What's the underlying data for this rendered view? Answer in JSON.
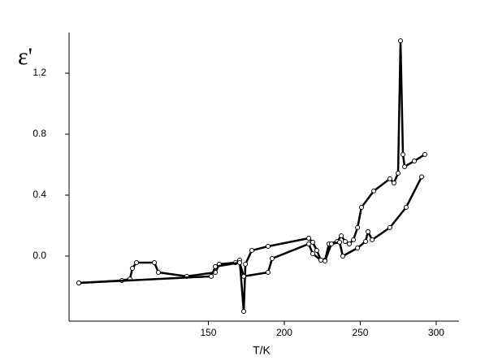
{
  "chart_data": {
    "type": "line",
    "x_label": "T/K",
    "y_label": "ε'",
    "xlim": [
      58.3,
      315
    ],
    "xticks": [
      150,
      200,
      250,
      300
    ],
    "ylim": [
      -0.427,
      1.467
    ],
    "yticks": [
      {
        "value": 0,
        "label": "0.0"
      },
      0.4,
      0.8,
      1.2
    ],
    "grid": false,
    "marker": "open-circle",
    "series": [
      {
        "color": "#000000",
        "x": [
          64.7,
          93.1,
          98.4,
          100.0,
          102.7,
          114.5,
          117.1,
          135.8,
          154.6,
          157.2,
          167.9,
          170.6,
          173.3,
          174.4,
          178.6,
          189.3,
          216.1,
          218.7,
          221.4,
          224.1,
          226.8,
          229.4,
          234.8,
          237.5,
          240.1,
          242.8,
          245.5,
          248.2,
          250.8,
          258.9,
          269.5,
          272.2,
          274.9,
          276.5,
          278.1,
          279.2,
          285.6,
          292.5
        ],
        "values": [
          -0.176,
          -0.16,
          -0.15,
          -0.08,
          -0.043,
          -0.043,
          -0.107,
          -0.133,
          -0.107,
          -0.053,
          -0.043,
          -0.027,
          -0.363,
          -0.053,
          0.037,
          0.064,
          0.117,
          0.091,
          0.037,
          -0.027,
          -0.027,
          0.08,
          0.096,
          0.133,
          0.096,
          0.08,
          0.107,
          0.187,
          0.32,
          0.427,
          0.507,
          0.48,
          0.544,
          1.413,
          0.667,
          0.587,
          0.624,
          0.667
        ]
      },
      {
        "color": "#000000",
        "x": [
          64.7,
          151.9,
          154.6,
          170.6,
          173.3,
          189.3,
          192.0,
          216.1,
          218.7,
          224.1,
          226.8,
          231.0,
          236.4,
          238.5,
          248.2,
          253.5,
          255.1,
          257.8,
          269.5,
          280.2,
          290.4
        ],
        "values": [
          -0.176,
          -0.133,
          -0.069,
          -0.043,
          -0.133,
          -0.107,
          -0.016,
          0.08,
          0.016,
          -0.027,
          -0.032,
          0.08,
          0.091,
          0.0,
          0.053,
          0.096,
          0.16,
          0.107,
          0.187,
          0.32,
          0.52
        ]
      }
    ]
  }
}
